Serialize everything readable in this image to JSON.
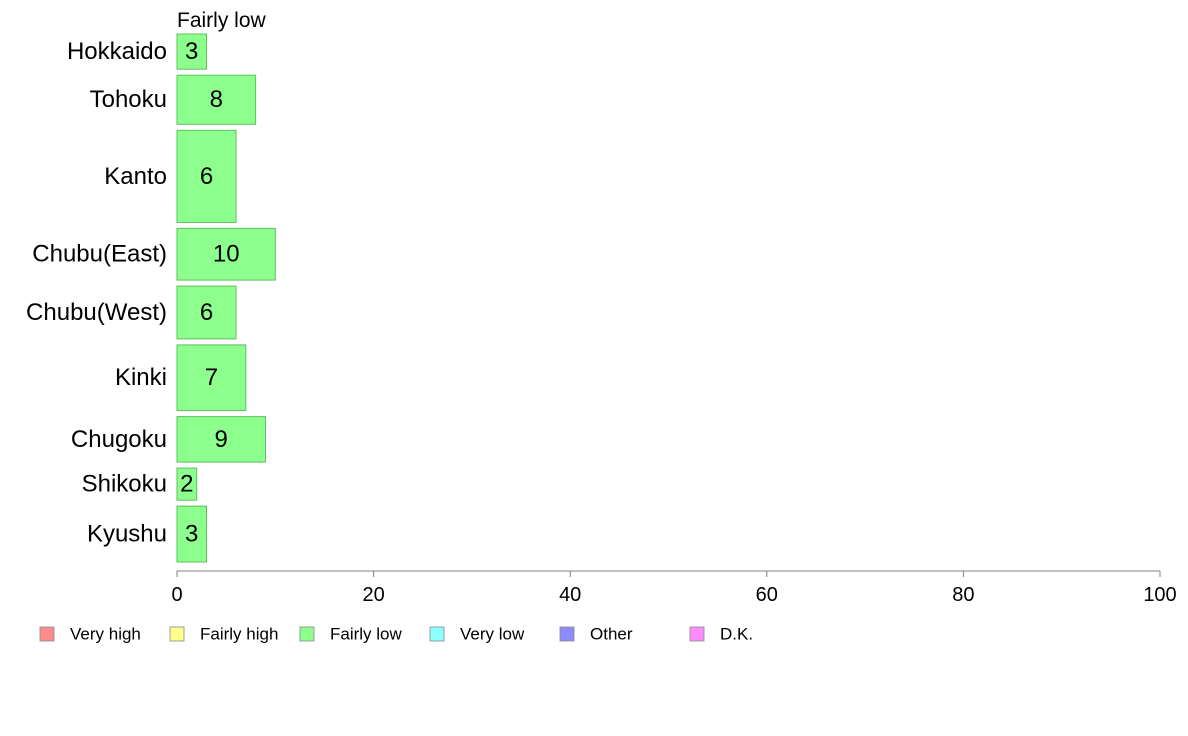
{
  "chart_data": {
    "type": "bar",
    "orientation": "horizontal",
    "series_title": "Fairly low",
    "categories": [
      "Hokkaido",
      "Tohoku",
      "Kanto",
      "Chubu(East)",
      "Chubu(West)",
      "Kinki",
      "Chugoku",
      "Shikoku",
      "Kyushu"
    ],
    "category_weights": [
      0.68,
      0.95,
      1.78,
      1.0,
      1.02,
      1.27,
      0.88,
      0.62,
      1.08
    ],
    "values": [
      3,
      8,
      6,
      10,
      6,
      7,
      9,
      2,
      3
    ],
    "bar_color": "#8cff8c",
    "bar_edge_color": "#5fbf5f",
    "xlim": [
      0,
      100
    ],
    "x_ticks": [
      "0",
      "20",
      "40",
      "60",
      "80",
      "100"
    ],
    "legend": [
      {
        "label": "Very high",
        "color": "#ff8c8c"
      },
      {
        "label": "Fairly high",
        "color": "#ffff8c"
      },
      {
        "label": "Fairly low",
        "color": "#8cff8c"
      },
      {
        "label": "Very low",
        "color": "#8cffff"
      },
      {
        "label": "Other",
        "color": "#8c8cff"
      },
      {
        "label": "D.K.",
        "color": "#ff8cff"
      }
    ],
    "legend_position": "bottom",
    "grid": false
  }
}
